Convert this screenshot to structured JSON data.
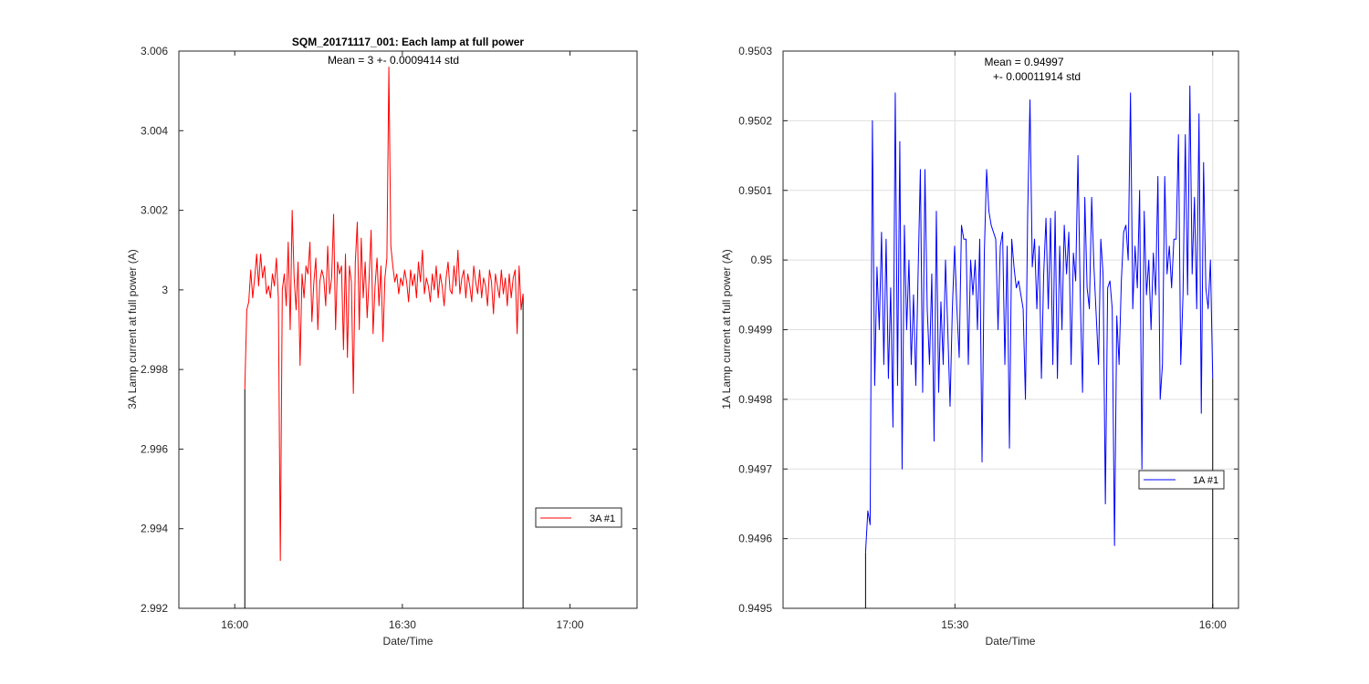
{
  "chart_data": [
    {
      "type": "line",
      "title": "SQM_20171117_001: Each lamp at full power",
      "annotation": [
        "Mean = 3 +- 0.0009414 std"
      ],
      "xlabel": "Date/Time",
      "ylabel": "3A Lamp current at full power (A)",
      "x_tick_labels": [
        "16:00",
        "16:30",
        "17:00"
      ],
      "x_tick_minutes": [
        0,
        30,
        60
      ],
      "xlim_minutes": [
        -10,
        72
      ],
      "y_tick_labels": [
        "2.992",
        "2.994",
        "2.996",
        "2.998",
        "3",
        "3.002",
        "3.004",
        "3.006"
      ],
      "ylim": [
        2.992,
        3.006
      ],
      "grid": false,
      "legend": {
        "label": "3A #1",
        "position": "right"
      },
      "line_color": "#ff0000",
      "ramp_color": "#000000",
      "series": [
        {
          "name": "3A #1",
          "x_start_minutes": 1.8,
          "x_end_minutes": 51.6,
          "values": [
            2.9975,
            2.9995,
            2.9997,
            3.0005,
            2.9998,
            3.0003,
            3.0009,
            3.0001,
            3.0009,
            3.0003,
            3.0006,
            2.9999,
            3.0001,
            2.9998,
            3.0004,
            3.0001,
            3.0008,
            2.9998,
            2.9932,
            3.0,
            3.0004,
            2.9996,
            3.0012,
            2.999,
            3.002,
            3.0003,
            2.9995,
            3.0007,
            2.9981,
            3.0004,
            2.9998,
            3.0006,
            3.0004,
            3.0012,
            2.9992,
            3.0002,
            3.0008,
            2.999,
            3.0002,
            3.0005,
            3.0003,
            2.9996,
            3.0011,
            2.9999,
            3.0003,
            3.0019,
            2.999,
            3.0007,
            3.0004,
            3.0006,
            2.9985,
            3.0009,
            2.9983,
            3.0006,
            3.0002,
            2.9974,
            3.0007,
            3.0017,
            2.999,
            3.0013,
            2.9998,
            3.0007,
            2.9993,
            3.0003,
            3.0015,
            2.9989,
            3.0001,
            3.0008,
            2.9996,
            3.0006,
            2.9987,
            3.0003,
            3.0008,
            3.0056,
            3.0011,
            3.0006,
            3.0002,
            3.0004,
            2.9999,
            3.0003,
            3.0001,
            3.0005,
            3.0002,
            2.9997,
            3.0005,
            3.0001,
            3.0004,
            2.9998,
            3.0007,
            3.0002,
            3.001,
            2.9999,
            3.0003,
            3.0001,
            2.9997,
            3.0004,
            3.0,
            3.0006,
            2.9998,
            3.0004,
            3.0001,
            2.9996,
            3.0003,
            3.0007,
            3.0,
            2.9999,
            3.0006,
            3.0001,
            3.001,
            2.9999,
            3.0003,
            3.0005,
            2.9998,
            3.0004,
            3.0001,
            2.9997,
            3.0006,
            3.0002,
            2.9999,
            3.0005,
            2.9998,
            3.0003,
            3.0001,
            2.9996,
            3.0005,
            3.0002,
            2.9994,
            3.0004,
            3.0001,
            2.9998,
            3.0005,
            2.9999,
            3.0003,
            2.9996,
            3.0004,
            2.9998,
            3.0003,
            3.0005,
            2.9989,
            3.0006,
            2.9995,
            2.9999
          ]
        }
      ]
    },
    {
      "type": "line",
      "title": "",
      "annotation": [
        "Mean = 0.94997",
        "+- 0.00011914 std"
      ],
      "xlabel": "Date/Time",
      "ylabel": "1A Lamp current at full power (A)",
      "x_tick_labels": [
        "15:30",
        "16:00"
      ],
      "x_tick_minutes": [
        30,
        60
      ],
      "xlim_minutes": [
        10,
        63
      ],
      "y_tick_labels": [
        "0.9495",
        "0.9496",
        "0.9497",
        "0.9498",
        "0.9499",
        "0.95",
        "0.9501",
        "0.9502",
        "0.9503"
      ],
      "ylim": [
        0.9495,
        0.9503
      ],
      "grid": true,
      "legend": {
        "label": "1A #1",
        "position": "right"
      },
      "line_color": "#0000ff",
      "ramp_color": "#000000",
      "series": [
        {
          "name": "1A #1",
          "x_start_minutes": 19.6,
          "x_end_minutes": 60.0,
          "values": [
            0.94958,
            0.94964,
            0.94962,
            0.9502,
            0.94982,
            0.94999,
            0.9499,
            0.95004,
            0.94985,
            0.95003,
            0.94983,
            0.94996,
            0.94976,
            0.95024,
            0.94982,
            0.95017,
            0.9497,
            0.95005,
            0.9499,
            0.95,
            0.94985,
            0.94995,
            0.94982,
            0.94998,
            0.95013,
            0.94981,
            0.95013,
            0.94993,
            0.94985,
            0.94998,
            0.94974,
            0.95007,
            0.94981,
            0.94994,
            0.94985,
            0.95,
            0.9499,
            0.94979,
            0.94993,
            0.95002,
            0.94993,
            0.94986,
            0.95005,
            0.95003,
            0.95003,
            0.94985,
            0.95,
            0.94995,
            0.95,
            0.9499,
            0.95003,
            0.94971,
            0.95001,
            0.95013,
            0.95007,
            0.95005,
            0.95004,
            0.95003,
            0.9499,
            0.95002,
            0.95004,
            0.94985,
            0.95002,
            0.94973,
            0.95003,
            0.94999,
            0.94996,
            0.94997,
            0.94995,
            0.94993,
            0.9498,
            0.95007,
            0.95023,
            0.94999,
            0.95003,
            0.94993,
            0.95002,
            0.94983,
            0.94998,
            0.95006,
            0.94993,
            0.95006,
            0.94985,
            0.95007,
            0.94983,
            0.95002,
            0.9499,
            0.95005,
            0.94998,
            0.95004,
            0.94985,
            0.95001,
            0.94997,
            0.95015,
            0.94995,
            0.94981,
            0.95009,
            0.94996,
            0.94993,
            0.95009,
            0.94999,
            0.94992,
            0.94985,
            0.95003,
            0.94998,
            0.94965,
            0.94996,
            0.94997,
            0.94993,
            0.94959,
            0.94992,
            0.94985,
            0.94997,
            0.95004,
            0.95005,
            0.95,
            0.95024,
            0.94993,
            0.95002,
            0.94996,
            0.9501,
            0.9497,
            0.95007,
            0.94995,
            0.95,
            0.9499,
            0.95001,
            0.94995,
            0.95012,
            0.9498,
            0.94985,
            0.95012,
            0.94998,
            0.95002,
            0.94996,
            0.95003,
            0.95003,
            0.95018,
            0.94985,
            0.94995,
            0.95018,
            0.94995,
            0.95025,
            0.94998,
            0.95009,
            0.94993,
            0.95021,
            0.94978,
            0.95014,
            0.94996,
            0.94993,
            0.95,
            0.94983
          ]
        }
      ]
    }
  ]
}
